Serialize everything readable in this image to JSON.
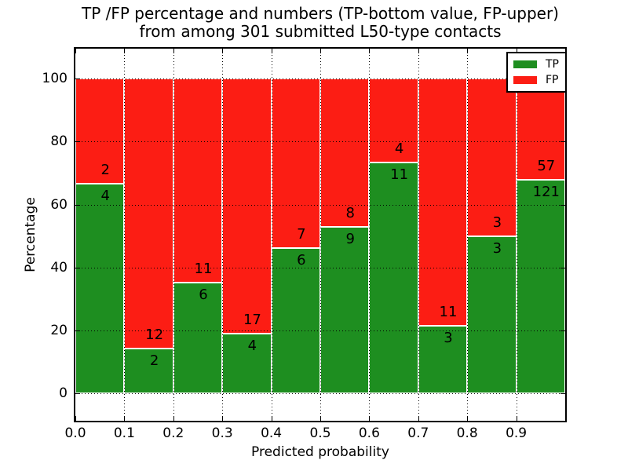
{
  "chart": {
    "title_line1": "TP /FP percentage and numbers (TP-bottom value, FP-upper)",
    "title_line2": "from among 301 submitted L50-type contacts",
    "xlabel": "Predicted probability",
    "ylabel": "Percentage"
  },
  "chart_data": {
    "type": "bar",
    "stacked": true,
    "normalized": "percent (each bar TP+FP = 100%)",
    "title": "TP /FP percentage and numbers (TP-bottom value, FP-upper) from among 301 submitted L50-type contacts",
    "xlabel": "Predicted probability",
    "ylabel": "Percentage",
    "total_contacts": 301,
    "x_bin_edges": [
      0.0,
      0.1,
      0.2,
      0.3,
      0.4,
      0.5,
      0.6,
      0.7,
      0.8,
      0.9,
      1.0
    ],
    "xtick_labels": [
      "0.0",
      "0.1",
      "0.2",
      "0.3",
      "0.4",
      "0.5",
      "0.6",
      "0.7",
      "0.8",
      "0.9"
    ],
    "ytick_values": [
      0,
      20,
      40,
      60,
      80,
      100
    ],
    "xlim": [
      0.0,
      1.0
    ],
    "ylim": [
      -8.7,
      109.5
    ],
    "grid": true,
    "legend_position": "upper right",
    "series": [
      {
        "name": "TP",
        "color": "#1e8e20",
        "values": [
          4,
          2,
          6,
          4,
          6,
          9,
          11,
          3,
          3,
          121
        ]
      },
      {
        "name": "FP",
        "color": "#fc1d14",
        "values": [
          2,
          12,
          11,
          17,
          7,
          8,
          4,
          11,
          3,
          57
        ]
      }
    ],
    "tp_percent_per_bin": [
      66.7,
      14.3,
      35.3,
      19.0,
      46.2,
      52.9,
      73.3,
      21.4,
      50.0,
      68.0
    ],
    "colors": {
      "background": "#ffffff",
      "frame": "#000000",
      "grid": "#000000",
      "bar_edge": "#ffffff",
      "text": "#000000"
    }
  }
}
